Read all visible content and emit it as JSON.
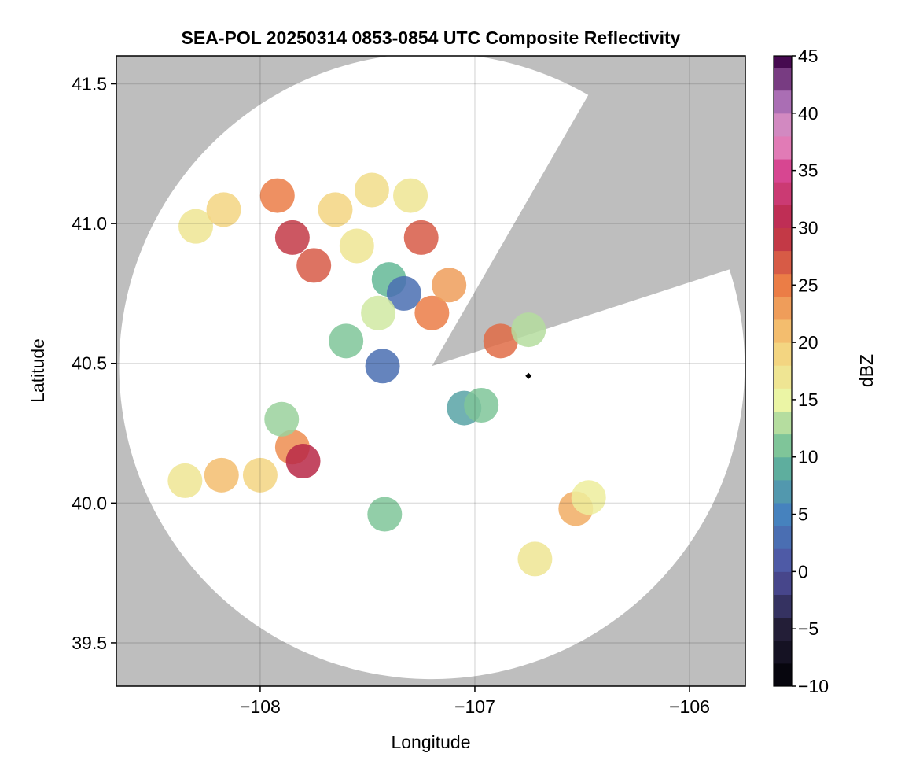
{
  "chart_data": {
    "type": "heatmap",
    "title": "SEA-POL 20250314 0853-0854 UTC Composite Reflectivity",
    "xlabel": "Longitude",
    "ylabel": "Latitude",
    "xlim": [
      -108.67,
      -105.74
    ],
    "ylim": [
      39.345,
      41.6
    ],
    "xticks": [
      {
        "value": -108,
        "label": "−108"
      },
      {
        "value": -107,
        "label": "−107"
      },
      {
        "value": -106,
        "label": "−106"
      }
    ],
    "yticks": [
      {
        "value": 39.5,
        "label": "39.5"
      },
      {
        "value": 40.0,
        "label": "40.0"
      },
      {
        "value": 40.5,
        "label": "40.5"
      },
      {
        "value": 41.0,
        "label": "41.0"
      },
      {
        "value": 41.5,
        "label": "41.5"
      }
    ],
    "grid": true,
    "background_color": "#bebebe",
    "radar": {
      "center": [
        -107.2,
        40.49
      ],
      "range_lat_deg": 1.12,
      "blocked_sector_deg": [
        18,
        60
      ],
      "marker": [
        -106.75,
        40.455
      ]
    },
    "colorbar": {
      "label": "dBZ",
      "min": -10,
      "max": 45,
      "step": 2,
      "ticks": [
        {
          "value": -10,
          "label": "−10"
        },
        {
          "value": -5,
          "label": "−5"
        },
        {
          "value": 0,
          "label": "0"
        },
        {
          "value": 5,
          "label": "5"
        },
        {
          "value": 10,
          "label": "10"
        },
        {
          "value": 15,
          "label": "15"
        },
        {
          "value": 20,
          "label": "20"
        },
        {
          "value": 25,
          "label": "25"
        },
        {
          "value": 30,
          "label": "30"
        },
        {
          "value": 35,
          "label": "35"
        },
        {
          "value": 40,
          "label": "40"
        },
        {
          "value": 45,
          "label": "45"
        }
      ]
    },
    "echo_cells": [
      {
        "lon": -107.85,
        "lat": 40.95,
        "dbz": 29
      },
      {
        "lon": -107.92,
        "lat": 41.1,
        "dbz": 25
      },
      {
        "lon": -107.75,
        "lat": 40.85,
        "dbz": 27
      },
      {
        "lon": -107.65,
        "lat": 41.05,
        "dbz": 19
      },
      {
        "lon": -107.55,
        "lat": 40.92,
        "dbz": 17
      },
      {
        "lon": -107.48,
        "lat": 41.12,
        "dbz": 18
      },
      {
        "lon": -107.3,
        "lat": 41.1,
        "dbz": 17
      },
      {
        "lon": -107.25,
        "lat": 40.95,
        "dbz": 27
      },
      {
        "lon": -107.4,
        "lat": 40.8,
        "dbz": 10
      },
      {
        "lon": -107.33,
        "lat": 40.75,
        "dbz": 3
      },
      {
        "lon": -107.45,
        "lat": 40.68,
        "dbz": 14
      },
      {
        "lon": -107.2,
        "lat": 40.68,
        "dbz": 25
      },
      {
        "lon": -107.12,
        "lat": 40.78,
        "dbz": 23
      },
      {
        "lon": -106.88,
        "lat": 40.58,
        "dbz": 26
      },
      {
        "lon": -106.75,
        "lat": 40.62,
        "dbz": 13
      },
      {
        "lon": -108.3,
        "lat": 40.99,
        "dbz": 17
      },
      {
        "lon": -108.17,
        "lat": 41.05,
        "dbz": 19
      },
      {
        "lon": -107.85,
        "lat": 40.2,
        "dbz": 24
      },
      {
        "lon": -107.8,
        "lat": 40.15,
        "dbz": 30
      },
      {
        "lon": -108.0,
        "lat": 40.1,
        "dbz": 19
      },
      {
        "lon": -108.18,
        "lat": 40.1,
        "dbz": 21
      },
      {
        "lon": -107.9,
        "lat": 40.3,
        "dbz": 12
      },
      {
        "lon": -108.35,
        "lat": 40.08,
        "dbz": 17
      },
      {
        "lon": -107.05,
        "lat": 40.34,
        "dbz": 8
      },
      {
        "lon": -106.97,
        "lat": 40.35,
        "dbz": 11
      },
      {
        "lon": -106.53,
        "lat": 39.98,
        "dbz": 22
      },
      {
        "lon": -106.47,
        "lat": 40.02,
        "dbz": 16
      },
      {
        "lon": -107.43,
        "lat": 40.49,
        "dbz": 3
      },
      {
        "lon": -107.6,
        "lat": 40.58,
        "dbz": 11
      },
      {
        "lon": -106.72,
        "lat": 39.8,
        "dbz": 17
      },
      {
        "lon": -107.42,
        "lat": 39.96,
        "dbz": 11
      }
    ]
  }
}
